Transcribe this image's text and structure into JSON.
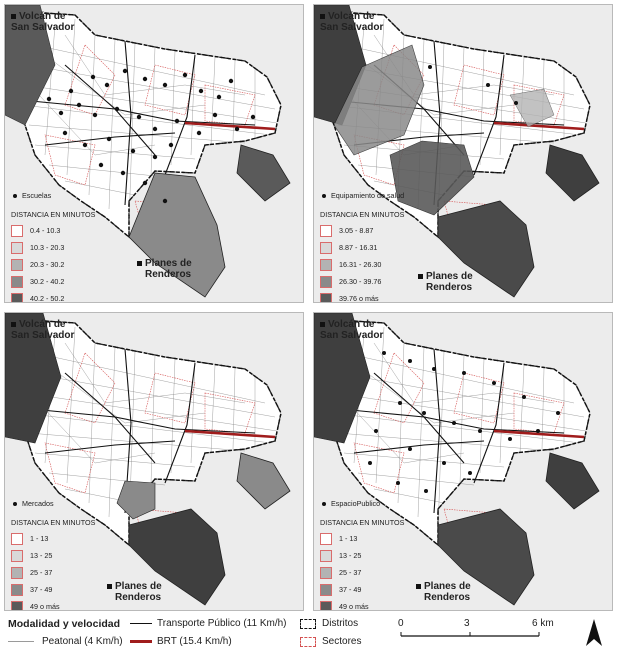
{
  "labels": {
    "volcan": [
      "Volcán de",
      "San Salvador"
    ],
    "planes": [
      "Planes de",
      "Renderos"
    ]
  },
  "panels": [
    {
      "point_label": "Escuelas",
      "legend_title": "DISTANCIA EN MINUTOS",
      "classes": [
        "0.4 - 10.3",
        "10.3 - 20.3",
        "20.3 - 30.2",
        "30.2 - 40.2",
        "40.2 - 50.2"
      ],
      "colors": [
        "#ffffff",
        "#d9d9d9",
        "#b3b3b3",
        "#8a8a8a",
        "#5a5a5a"
      ]
    },
    {
      "point_label": "Equipamiento de salud",
      "legend_title": "DISTANCIA EN MINUTOS",
      "classes": [
        "3.05 - 8.87",
        "8.87 - 16.31",
        "16.31 - 26.30",
        "26.30 - 39.76",
        "39.76 o más"
      ],
      "colors": [
        "#ffffff",
        "#d9d9d9",
        "#b3b3b3",
        "#8a8a8a",
        "#5a5a5a"
      ]
    },
    {
      "point_label": "Mercados",
      "legend_title": "DISTANCIA EN MINUTOS",
      "classes": [
        "1 - 13",
        "13 - 25",
        "25 - 37",
        "37 - 49",
        "49 o más"
      ],
      "colors": [
        "#ffffff",
        "#d9d9d9",
        "#b3b3b3",
        "#8a8a8a",
        "#5a5a5a"
      ]
    },
    {
      "point_label": "EspacioPublico",
      "legend_title": "DISTANCIA EN MINUTOS",
      "classes": [
        "1 - 13",
        "13 - 25",
        "25 - 37",
        "37 - 49",
        "49 o más"
      ],
      "colors": [
        "#ffffff",
        "#d9d9d9",
        "#b3b3b3",
        "#8a8a8a",
        "#5a5a5a"
      ]
    }
  ],
  "bottom_legend": {
    "title": "Modalidad y velocidad",
    "transporte": "Transporte Público (11 Km/h)",
    "peatonal": "Peatonal (4 Km/h)",
    "brt": "BRT (15.4  Km/h)",
    "distritos": "Distritos",
    "sectores": "Sectores",
    "scale": [
      "0",
      "3",
      "6 km"
    ],
    "colors": {
      "brt": "#a01c1c",
      "sectores": "#d45050"
    }
  }
}
